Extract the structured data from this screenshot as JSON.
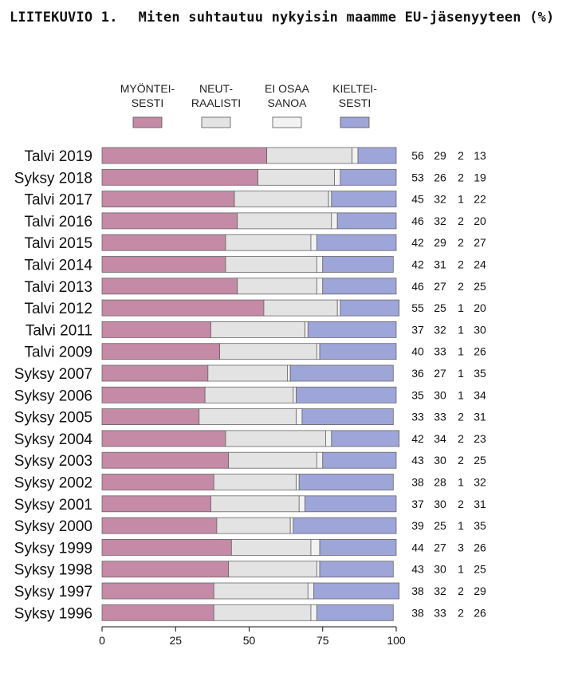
{
  "figure": {
    "label": "LIITEKUVIO 1.",
    "title": "Miten suhtautuu nykyisin maamme EU-jäsenyyteen (%)"
  },
  "chart_data": {
    "type": "bar",
    "orientation": "horizontal",
    "stacked": true,
    "legend_position": "top",
    "xlim": [
      0,
      100
    ],
    "xticks": [
      0,
      25,
      50,
      75,
      100
    ],
    "categories": [
      "Talvi 2019",
      "Syksy 2018",
      "Talvi 2017",
      "Talvi 2016",
      "Talvi 2015",
      "Talvi 2014",
      "Talvi 2013",
      "Talvi 2012",
      "Talvi 2011",
      "Talvi 2009",
      "Syksy 2007",
      "Syksy 2006",
      "Syksy 2005",
      "Syksy 2004",
      "Syksy 2003",
      "Syksy 2002",
      "Syksy 2001",
      "Syksy 2000",
      "Syksy 1999",
      "Syksy 1998",
      "Syksy 1997",
      "Syksy 1996"
    ],
    "series": [
      {
        "name": "MYÖNTEISESTI",
        "legend_lines": [
          "MYÖNTEI-",
          "SESTI"
        ],
        "color": "#c48aa6",
        "values": [
          56,
          53,
          45,
          46,
          42,
          42,
          46,
          55,
          37,
          40,
          36,
          35,
          33,
          42,
          43,
          38,
          37,
          39,
          44,
          43,
          38,
          38
        ]
      },
      {
        "name": "NEUTRAALISTI",
        "legend_lines": [
          "NEUT-",
          "RAALISTI"
        ],
        "color": "#e3e3e3",
        "values": [
          29,
          26,
          32,
          32,
          29,
          31,
          27,
          25,
          32,
          33,
          27,
          30,
          33,
          34,
          30,
          28,
          30,
          25,
          27,
          30,
          32,
          33
        ]
      },
      {
        "name": "EI OSAA SANOA",
        "legend_lines": [
          "EI OSAA",
          "SANOA"
        ],
        "color": "#f2f2f2",
        "values": [
          2,
          2,
          1,
          2,
          2,
          2,
          2,
          1,
          1,
          1,
          1,
          1,
          2,
          2,
          2,
          1,
          2,
          1,
          3,
          1,
          2,
          2
        ]
      },
      {
        "name": "KIELTEISESTI",
        "legend_lines": [
          "KIELTEI-",
          "SESTI"
        ],
        "color": "#9ea5d8",
        "values": [
          13,
          19,
          22,
          20,
          27,
          24,
          25,
          20,
          30,
          26,
          35,
          34,
          31,
          23,
          25,
          32,
          31,
          35,
          26,
          25,
          29,
          26
        ]
      }
    ]
  }
}
